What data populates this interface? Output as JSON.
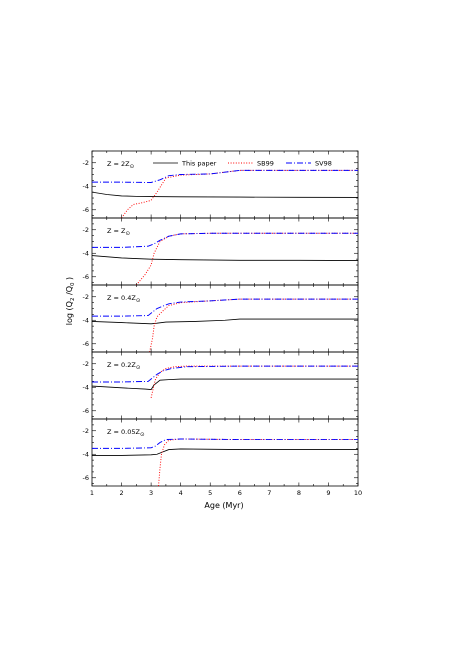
{
  "figure": {
    "xlabel": "Age (Myr)",
    "ylabel_prefix": "log (Q",
    "ylabel_sub1": "2",
    "ylabel_mid": " /Q",
    "ylabel_sub2": "0",
    "ylabel_suffix": " )"
  },
  "legend": {
    "items": [
      {
        "label": "This paper",
        "color": "#000000",
        "style": "solid"
      },
      {
        "label": "SB99",
        "color": "#ff0000",
        "style": "dotted"
      },
      {
        "label": "SV98",
        "color": "#0000ff",
        "style": "longdash-dot"
      }
    ]
  },
  "chart_data": {
    "type": "line",
    "xlim": [
      1,
      10
    ],
    "ylim": [
      -6.7,
      -1.0
    ],
    "x_ticks": [
      "1",
      "2",
      "3",
      "4",
      "5",
      "6",
      "7",
      "8",
      "9",
      "10"
    ],
    "y_ticks": [
      "-2",
      "-4",
      "-6"
    ],
    "panels": [
      {
        "label_main": "Z = 2Z",
        "label_sub": "⊙",
        "series": [
          {
            "name": "This paper",
            "x": [
              1,
              1.5,
              2,
              2.5,
              3,
              4,
              6,
              8,
              10
            ],
            "y": [
              -4.5,
              -4.7,
              -4.82,
              -4.86,
              -4.88,
              -4.9,
              -4.92,
              -4.94,
              -4.95
            ]
          },
          {
            "name": "SB99",
            "x": [
              2.0,
              2.2,
              2.4,
              2.7,
              3.0,
              3.2,
              3.5,
              4.0,
              5.0,
              6.0,
              7.0,
              8.0,
              10.0
            ],
            "y": [
              -6.7,
              -6.0,
              -5.55,
              -5.4,
              -5.2,
              -4.5,
              -3.3,
              -3.05,
              -2.95,
              -2.65,
              -2.65,
              -2.65,
              -2.65
            ]
          },
          {
            "name": "SV98",
            "x": [
              1,
              2,
              3,
              3.3,
              3.6,
              4,
              5,
              6,
              7,
              8,
              10
            ],
            "y": [
              -3.65,
              -3.65,
              -3.68,
              -3.45,
              -3.1,
              -3.0,
              -2.95,
              -2.65,
              -2.65,
              -2.65,
              -2.65
            ]
          }
        ]
      },
      {
        "label_main": "Z = Z",
        "label_sub": "⊙",
        "series": [
          {
            "name": "This paper",
            "x": [
              1,
              2,
              3,
              4,
              6,
              8,
              10
            ],
            "y": [
              -4.2,
              -4.4,
              -4.5,
              -4.55,
              -4.6,
              -4.6,
              -4.62
            ]
          },
          {
            "name": "SB99",
            "x": [
              2.5,
              2.8,
              3.0,
              3.1,
              3.3,
              3.6,
              4.0,
              5,
              7,
              10
            ],
            "y": [
              -6.7,
              -5.8,
              -5.0,
              -4.0,
              -3.0,
              -2.55,
              -2.35,
              -2.3,
              -2.3,
              -2.3
            ]
          },
          {
            "name": "SV98",
            "x": [
              1,
              2,
              2.9,
              3.1,
              3.3,
              3.6,
              4.0,
              5,
              7,
              10
            ],
            "y": [
              -3.5,
              -3.5,
              -3.4,
              -3.2,
              -2.9,
              -2.55,
              -2.35,
              -2.3,
              -2.3,
              -2.3
            ]
          }
        ]
      },
      {
        "label_main": "Z = 0.4Z",
        "label_sub": "⊙",
        "series": [
          {
            "name": "This paper",
            "x": [
              1,
              2,
              3,
              3.2,
              3.5,
              4.5,
              5.5,
              6,
              8,
              10
            ],
            "y": [
              -4.1,
              -4.2,
              -4.3,
              -4.25,
              -4.15,
              -4.1,
              -4.0,
              -3.9,
              -3.9,
              -3.9
            ]
          },
          {
            "name": "SB99",
            "x": [
              2.95,
              3.05,
              3.1,
              3.2,
              3.4,
              3.6,
              4.0,
              5.0,
              6.0,
              8.0,
              10.0
            ],
            "y": [
              -6.7,
              -5.5,
              -4.5,
              -3.7,
              -3.2,
              -2.75,
              -2.5,
              -2.35,
              -2.2,
              -2.2,
              -2.2
            ]
          },
          {
            "name": "SV98",
            "x": [
              1,
              2,
              2.9,
              3.05,
              3.2,
              3.4,
              3.6,
              4.0,
              5.0,
              6.0,
              8.0,
              10.0
            ],
            "y": [
              -3.65,
              -3.65,
              -3.6,
              -3.3,
              -3.0,
              -2.8,
              -2.6,
              -2.45,
              -2.35,
              -2.2,
              -2.2,
              -2.2
            ]
          }
        ]
      },
      {
        "label_main": "Z = 0.2Z",
        "label_sub": "⊙",
        "series": [
          {
            "name": "This paper",
            "x": [
              1,
              2,
              2.8,
              3.0,
              3.1,
              3.3,
              3.6,
              4.0,
              6.0,
              10.0
            ],
            "y": [
              -3.9,
              -4.05,
              -4.15,
              -4.2,
              -3.8,
              -3.4,
              -3.35,
              -3.3,
              -3.3,
              -3.3
            ]
          },
          {
            "name": "SB99",
            "x": [
              3.0,
              3.08,
              3.15,
              3.3,
              3.5,
              3.8,
              4.2,
              6.0,
              10.0
            ],
            "y": [
              -4.9,
              -4.0,
              -3.3,
              -2.75,
              -2.4,
              -2.25,
              -2.2,
              -2.2,
              -2.2
            ]
          },
          {
            "name": "SV98",
            "x": [
              1,
              2,
              2.9,
              3.05,
              3.2,
              3.4,
              3.7,
              4.2,
              6.0,
              10.0
            ],
            "y": [
              -3.55,
              -3.55,
              -3.5,
              -3.2,
              -2.9,
              -2.6,
              -2.4,
              -2.25,
              -2.2,
              -2.2
            ]
          }
        ]
      },
      {
        "label_main": "Z = 0.05Z",
        "label_sub": "⊙",
        "series": [
          {
            "name": "This paper",
            "x": [
              1,
              2,
              3,
              3.2,
              3.4,
              3.6,
              4,
              6,
              10
            ],
            "y": [
              -4.1,
              -4.1,
              -4.05,
              -4.0,
              -3.8,
              -3.6,
              -3.55,
              -3.6,
              -3.6
            ]
          },
          {
            "name": "SB99",
            "x": [
              3.25,
              3.3,
              3.35,
              3.45,
              3.6,
              4.0,
              6.0,
              10.0
            ],
            "y": [
              -6.7,
              -5.2,
              -4.0,
              -3.2,
              -2.8,
              -2.7,
              -2.75,
              -2.75
            ]
          },
          {
            "name": "SV98",
            "x": [
              1,
              2,
              3,
              3.15,
              3.3,
              3.5,
              4,
              6,
              10
            ],
            "y": [
              -3.5,
              -3.5,
              -3.45,
              -3.3,
              -3.0,
              -2.75,
              -2.7,
              -2.75,
              -2.75
            ]
          }
        ]
      }
    ]
  }
}
